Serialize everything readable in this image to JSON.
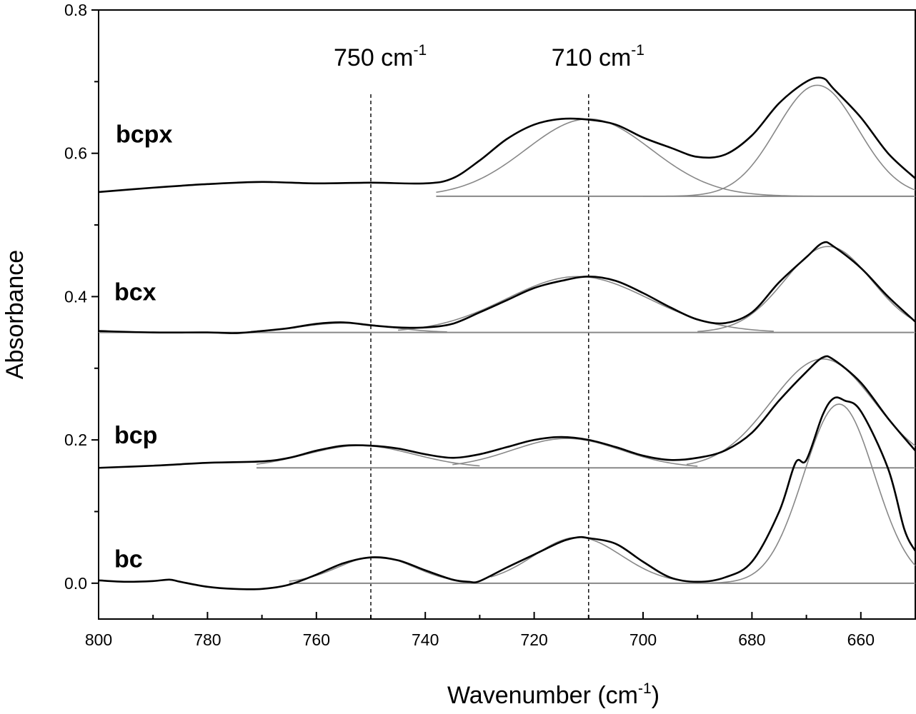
{
  "chart_data": {
    "type": "line",
    "xlabel": {
      "base": "Wavenumber (cm",
      "sup": "-1",
      "close": ")"
    },
    "ylabel": "Absorbance",
    "xlim": [
      800,
      650
    ],
    "ylim": [
      -0.05,
      0.8
    ],
    "x_ticks": [
      800,
      780,
      760,
      740,
      720,
      700,
      680,
      660
    ],
    "y_ticks": [
      0.0,
      0.2,
      0.4,
      0.6,
      0.8
    ],
    "y_tick_labels": [
      "0.0",
      "0.2",
      "0.4",
      "0.6",
      "0.8"
    ],
    "grid": false,
    "annotations": [
      {
        "base": "750 cm",
        "sup": "-1",
        "x": 750
      },
      {
        "base": "710 cm",
        "sup": "-1",
        "x": 710
      }
    ],
    "series": [
      {
        "name": "bcpx",
        "measured": {
          "x": [
            800,
            790,
            780,
            770,
            760,
            750,
            740,
            735,
            730,
            725,
            720,
            715,
            710,
            705,
            700,
            695,
            690,
            685,
            680,
            675,
            670,
            667,
            665,
            660,
            655,
            650
          ],
          "y": [
            0.546,
            0.552,
            0.557,
            0.56,
            0.558,
            0.559,
            0.558,
            0.565,
            0.59,
            0.62,
            0.64,
            0.648,
            0.647,
            0.64,
            0.622,
            0.608,
            0.595,
            0.598,
            0.625,
            0.67,
            0.7,
            0.705,
            0.69,
            0.65,
            0.6,
            0.565
          ]
        },
        "baseline": {
          "x": [
            738,
            650
          ],
          "y": 0.54
        },
        "fits": [
          {
            "center": 710,
            "height": 0.108,
            "sigma": 11.5,
            "x_start": 738,
            "x_end": 650
          },
          {
            "center": 668,
            "height": 0.155,
            "sigma": 7.5,
            "x_start": 700,
            "x_end": 650
          }
        ]
      },
      {
        "name": "bcx",
        "measured": {
          "x": [
            800,
            790,
            780,
            775,
            770,
            765,
            760,
            755,
            750,
            745,
            740,
            735,
            730,
            725,
            720,
            715,
            710,
            705,
            700,
            695,
            690,
            685,
            680,
            675,
            670,
            667,
            665,
            660,
            655,
            650
          ],
          "y": [
            0.352,
            0.35,
            0.35,
            0.349,
            0.352,
            0.356,
            0.362,
            0.364,
            0.36,
            0.357,
            0.357,
            0.362,
            0.378,
            0.395,
            0.412,
            0.422,
            0.428,
            0.422,
            0.405,
            0.385,
            0.368,
            0.363,
            0.378,
            0.42,
            0.455,
            0.475,
            0.47,
            0.44,
            0.4,
            0.365
          ]
        },
        "baseline": {
          "x": [
            800,
            650
          ],
          "y": 0.35
        },
        "fits": [
          {
            "center": 755,
            "height": 0.013,
            "sigma": 8,
            "x_start": 772,
            "x_end": 736
          },
          {
            "center": 712,
            "height": 0.078,
            "sigma": 13,
            "x_start": 745,
            "x_end": 676
          },
          {
            "center": 666,
            "height": 0.12,
            "sigma": 8,
            "x_start": 690,
            "x_end": 650
          }
        ]
      },
      {
        "name": "bcp",
        "measured": {
          "x": [
            800,
            790,
            780,
            770,
            765,
            760,
            755,
            750,
            745,
            740,
            735,
            730,
            725,
            720,
            715,
            710,
            705,
            700,
            695,
            690,
            685,
            680,
            675,
            670,
            667,
            665,
            660,
            655,
            650
          ],
          "y": [
            0.161,
            0.164,
            0.168,
            0.17,
            0.175,
            0.185,
            0.192,
            0.192,
            0.188,
            0.18,
            0.175,
            0.18,
            0.19,
            0.2,
            0.204,
            0.2,
            0.19,
            0.178,
            0.172,
            0.175,
            0.185,
            0.21,
            0.255,
            0.295,
            0.315,
            0.312,
            0.28,
            0.23,
            0.185
          ]
        },
        "baseline": {
          "x": [
            771,
            650
          ],
          "y": 0.161
        },
        "fits": [
          {
            "center": 752,
            "height": 0.031,
            "sigma": 10,
            "x_start": 771,
            "x_end": 730
          },
          {
            "center": 714,
            "height": 0.041,
            "sigma": 10,
            "x_start": 735,
            "x_end": 690
          },
          {
            "center": 667,
            "height": 0.152,
            "sigma": 9.5,
            "x_start": 692,
            "x_end": 650
          }
        ]
      },
      {
        "name": "bc",
        "measured": {
          "x": [
            800,
            795,
            790,
            787,
            785,
            780,
            775,
            770,
            765,
            760,
            755,
            750,
            745,
            740,
            735,
            732,
            730,
            725,
            720,
            715,
            712,
            710,
            705,
            700,
            695,
            690,
            685,
            680,
            675,
            672,
            670,
            667,
            665,
            663,
            660,
            655,
            652,
            650
          ],
          "y": [
            0.004,
            0.002,
            0.003,
            0.005,
            0.002,
            -0.005,
            -0.008,
            -0.008,
            -0.002,
            0.012,
            0.028,
            0.036,
            0.032,
            0.018,
            0.005,
            0.002,
            0.003,
            0.022,
            0.04,
            0.058,
            0.064,
            0.063,
            0.055,
            0.03,
            0.008,
            0.002,
            0.008,
            0.03,
            0.1,
            0.168,
            0.172,
            0.235,
            0.258,
            0.255,
            0.24,
            0.16,
            0.075,
            0.045
          ]
        },
        "baseline": {
          "x": [
            765,
            650
          ],
          "y": 0.0
        },
        "fits": [
          {
            "center": 749,
            "height": 0.037,
            "sigma": 7,
            "x_start": 765,
            "x_end": 733
          },
          {
            "center": 712,
            "height": 0.064,
            "sigma": 8,
            "x_start": 728,
            "x_end": 694
          },
          {
            "center": 664,
            "height": 0.25,
            "sigma": 6.5,
            "x_start": 690,
            "x_end": 650
          }
        ]
      }
    ]
  }
}
